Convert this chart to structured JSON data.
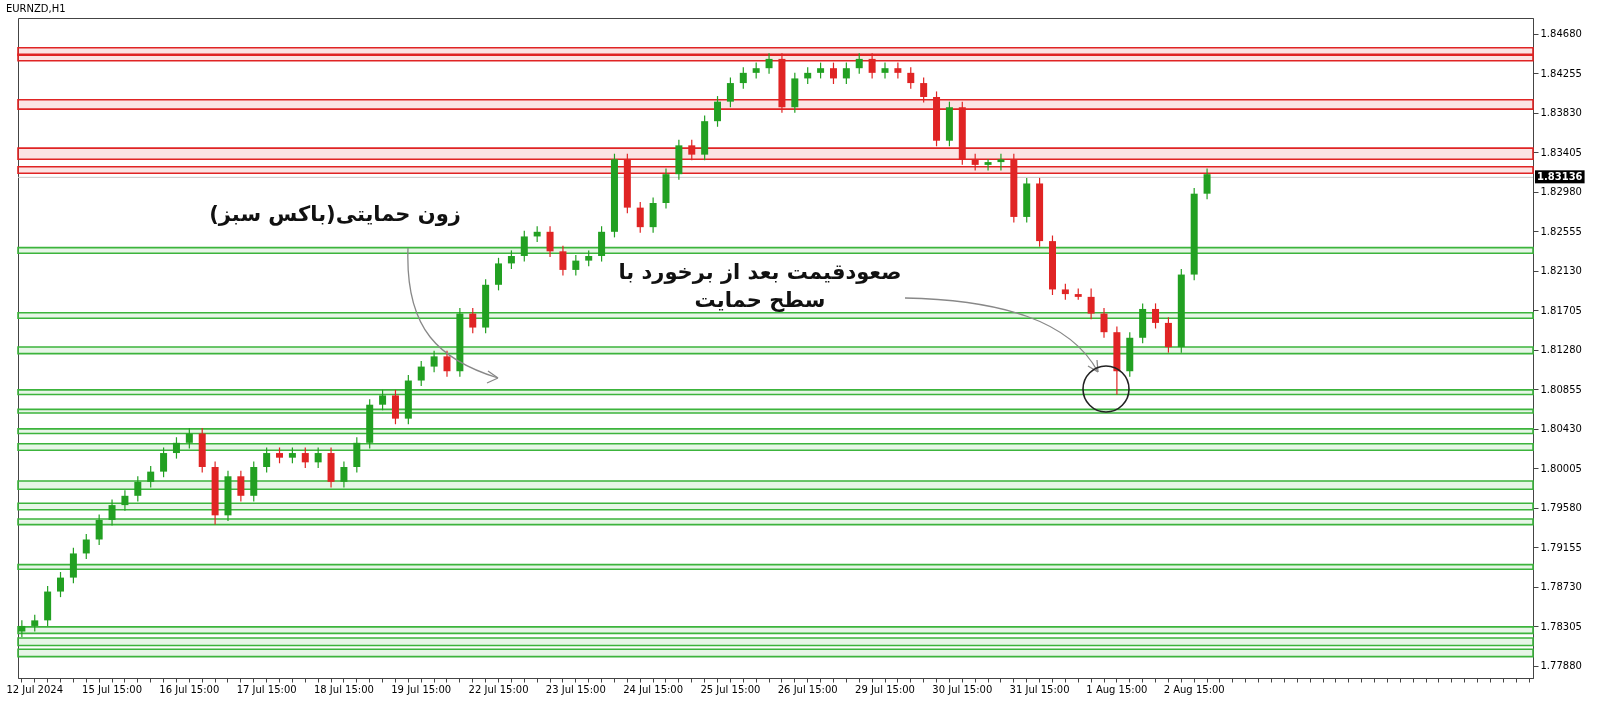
{
  "chart_data": {
    "type": "candlestick",
    "title": "EURNZD,H1",
    "categories": [
      null,
      "12 Jul 2024",
      null,
      null,
      null,
      null,
      null,
      "15 Jul 15:00",
      null,
      null,
      null,
      null,
      null,
      "16 Jul 15:00",
      null,
      null,
      null,
      null,
      null,
      "17 Jul 15:00",
      null,
      null,
      null,
      null,
      null,
      "18 Jul 15:00",
      null,
      null,
      null,
      null,
      null,
      "19 Jul 15:00",
      null,
      null,
      null,
      null,
      null,
      "22 Jul 15:00",
      null,
      null,
      null,
      null,
      null,
      "23 Jul 15:00",
      null,
      null,
      null,
      null,
      null,
      "24 Jul 15:00",
      null,
      null,
      null,
      null,
      null,
      "25 Jul 15:00",
      null,
      null,
      null,
      null,
      null,
      "26 Jul 15:00",
      null,
      null,
      null,
      null,
      null,
      "29 Jul 15:00",
      null,
      null,
      null,
      null,
      null,
      "30 Jul 15:00",
      null,
      null,
      null,
      null,
      null,
      "31 Jul 15:00",
      null,
      null,
      null,
      null,
      null,
      "1 Aug 15:00",
      null,
      null,
      null,
      null,
      null,
      "2 Aug 15:00",
      null,
      null,
      null,
      null,
      null,
      null,
      null,
      null,
      null,
      null,
      null,
      null,
      null,
      null,
      null,
      null,
      null,
      null,
      null,
      null,
      null,
      null,
      null,
      null,
      null,
      null
    ],
    "ohlc": [
      [
        1.7825,
        1.7837,
        1.7819,
        1.7831
      ],
      [
        1.7831,
        1.7843,
        1.7825,
        1.7837
      ],
      [
        1.7837,
        1.7874,
        1.7831,
        1.7868
      ],
      [
        1.7868,
        1.7889,
        1.7862,
        1.7883
      ],
      [
        1.7883,
        1.7915,
        1.7877,
        1.7909
      ],
      [
        1.7909,
        1.793,
        1.7903,
        1.7924
      ],
      [
        1.7924,
        1.7951,
        1.7918,
        1.7945
      ],
      [
        1.7945,
        1.7967,
        1.7939,
        1.7961
      ],
      [
        1.7961,
        1.7977,
        1.7955,
        1.7971
      ],
      [
        1.7971,
        1.7992,
        1.7965,
        1.7986
      ],
      [
        1.7986,
        1.8003,
        1.798,
        1.7997
      ],
      [
        1.7997,
        1.8023,
        1.7991,
        1.8017
      ],
      [
        1.8017,
        1.8034,
        1.8011,
        1.8028
      ],
      [
        1.8028,
        1.8044,
        1.8022,
        1.8038
      ],
      [
        1.8038,
        1.8044,
        1.7996,
        1.8002
      ],
      [
        1.8002,
        1.8008,
        1.794,
        1.795
      ],
      [
        1.795,
        1.7998,
        1.7944,
        1.7992
      ],
      [
        1.7992,
        1.7998,
        1.7965,
        1.7971
      ],
      [
        1.7971,
        1.8008,
        1.7965,
        1.8002
      ],
      [
        1.8002,
        1.8023,
        1.7996,
        1.8017
      ],
      [
        1.8017,
        1.8023,
        1.8006,
        1.8012
      ],
      [
        1.8012,
        1.8023,
        1.8006,
        1.8017
      ],
      [
        1.8017,
        1.8023,
        1.8001,
        1.8007
      ],
      [
        1.8007,
        1.8023,
        1.8001,
        1.8017
      ],
      [
        1.8017,
        1.8023,
        1.798,
        1.7986
      ],
      [
        1.7986,
        1.8008,
        1.798,
        1.8002
      ],
      [
        1.8002,
        1.8034,
        1.7996,
        1.8028
      ],
      [
        1.8028,
        1.8075,
        1.8022,
        1.8069
      ],
      [
        1.8069,
        1.8085,
        1.8063,
        1.8079
      ],
      [
        1.8079,
        1.8085,
        1.8048,
        1.8054
      ],
      [
        1.8054,
        1.8101,
        1.8048,
        1.8095
      ],
      [
        1.8095,
        1.8116,
        1.8089,
        1.811
      ],
      [
        1.811,
        1.8127,
        1.8104,
        1.8121
      ],
      [
        1.8121,
        1.8127,
        1.8099,
        1.8105
      ],
      [
        1.8105,
        1.8173,
        1.8099,
        1.8167
      ],
      [
        1.8167,
        1.8173,
        1.8146,
        1.8152
      ],
      [
        1.8152,
        1.8204,
        1.8146,
        1.8198
      ],
      [
        1.8198,
        1.8227,
        1.8192,
        1.8221
      ],
      [
        1.8221,
        1.8235,
        1.8215,
        1.8229
      ],
      [
        1.8229,
        1.8256,
        1.8223,
        1.825
      ],
      [
        1.825,
        1.8261,
        1.8244,
        1.8255
      ],
      [
        1.8255,
        1.8261,
        1.8228,
        1.8234
      ],
      [
        1.8234,
        1.824,
        1.8208,
        1.8214
      ],
      [
        1.8214,
        1.823,
        1.8208,
        1.8224
      ],
      [
        1.8224,
        1.8235,
        1.8218,
        1.8229
      ],
      [
        1.8229,
        1.8261,
        1.8223,
        1.8255
      ],
      [
        1.8255,
        1.8339,
        1.8249,
        1.8333
      ],
      [
        1.8333,
        1.8339,
        1.8275,
        1.8281
      ],
      [
        1.8281,
        1.8287,
        1.8254,
        1.826
      ],
      [
        1.826,
        1.8292,
        1.8254,
        1.8286
      ],
      [
        1.8286,
        1.8323,
        1.828,
        1.8317
      ],
      [
        1.8317,
        1.8354,
        1.8311,
        1.8348
      ],
      [
        1.8348,
        1.8354,
        1.8332,
        1.8338
      ],
      [
        1.8338,
        1.838,
        1.8332,
        1.8374
      ],
      [
        1.8374,
        1.8401,
        1.8368,
        1.8395
      ],
      [
        1.8395,
        1.8421,
        1.8389,
        1.8415
      ],
      [
        1.8415,
        1.8432,
        1.8409,
        1.8426
      ],
      [
        1.8426,
        1.8437,
        1.842,
        1.8431
      ],
      [
        1.8431,
        1.8447,
        1.8425,
        1.8441
      ],
      [
        1.8441,
        1.8447,
        1.8383,
        1.8389
      ],
      [
        1.8389,
        1.8426,
        1.8383,
        1.842
      ],
      [
        1.842,
        1.8432,
        1.8414,
        1.8426
      ],
      [
        1.8426,
        1.8437,
        1.842,
        1.8431
      ],
      [
        1.8431,
        1.8437,
        1.8414,
        1.842
      ],
      [
        1.842,
        1.8437,
        1.8414,
        1.8431
      ],
      [
        1.8431,
        1.8447,
        1.8425,
        1.8441
      ],
      [
        1.8441,
        1.8447,
        1.842,
        1.8426
      ],
      [
        1.8426,
        1.8437,
        1.842,
        1.8431
      ],
      [
        1.8431,
        1.8437,
        1.842,
        1.8426
      ],
      [
        1.8426,
        1.8432,
        1.8409,
        1.8415
      ],
      [
        1.8415,
        1.8421,
        1.8394,
        1.84
      ],
      [
        1.84,
        1.8406,
        1.8347,
        1.8353
      ],
      [
        1.8353,
        1.8395,
        1.8347,
        1.8389
      ],
      [
        1.8389,
        1.8395,
        1.8327,
        1.8333
      ],
      [
        1.8333,
        1.8339,
        1.8321,
        1.8327
      ],
      [
        1.8327,
        1.8333,
        1.8321,
        1.833
      ],
      [
        1.833,
        1.8339,
        1.8321,
        1.8333
      ],
      [
        1.8333,
        1.8339,
        1.8265,
        1.8271
      ],
      [
        1.8271,
        1.8313,
        1.8265,
        1.8307
      ],
      [
        1.8307,
        1.8313,
        1.8239,
        1.8245
      ],
      [
        1.8245,
        1.8251,
        1.8187,
        1.8193
      ],
      [
        1.8193,
        1.8199,
        1.8182,
        1.8188
      ],
      [
        1.8188,
        1.8194,
        1.8182,
        1.8185
      ],
      [
        1.8185,
        1.8194,
        1.8161,
        1.8167
      ],
      [
        1.8167,
        1.8173,
        1.8141,
        1.8147
      ],
      [
        1.8147,
        1.8153,
        1.808,
        1.8105
      ],
      [
        1.8105,
        1.8147,
        1.8099,
        1.8141
      ],
      [
        1.8141,
        1.8178,
        1.8135,
        1.8172
      ],
      [
        1.8172,
        1.8178,
        1.8151,
        1.8157
      ],
      [
        1.8157,
        1.8163,
        1.8125,
        1.8131
      ],
      [
        1.8131,
        1.8215,
        1.8125,
        1.8209
      ],
      [
        1.8209,
        1.8302,
        1.8203,
        1.8296
      ],
      [
        1.8296,
        1.8323,
        1.829,
        1.8317
      ],
      null,
      null,
      null,
      null,
      null,
      null,
      null,
      null,
      null,
      null,
      null,
      null,
      null,
      null,
      null,
      null,
      null,
      null,
      null,
      null,
      null,
      null,
      null,
      null,
      null
    ],
    "colors": [
      "#22a022",
      "#22a022",
      "#22a022",
      "#22a022",
      "#22a022",
      "#22a022",
      "#22a022",
      "#22a022",
      "#22a022",
      "#22a022",
      "#22a022",
      "#22a022",
      "#22a022",
      "#22a022",
      "#e02424",
      "#e02424",
      "#22a022",
      "#e02424",
      "#22a022",
      "#22a022",
      "#e02424",
      "#22a022",
      "#e02424",
      "#22a022",
      "#e02424",
      "#22a022",
      "#22a022",
      "#22a022",
      "#22a022",
      "#e02424",
      "#22a022",
      "#22a022",
      "#22a022",
      "#e02424",
      "#22a022",
      "#e02424",
      "#22a022",
      "#22a022",
      "#22a022",
      "#22a022",
      "#22a022",
      "#e02424",
      "#e02424",
      "#22a022",
      "#22a022",
      "#22a022",
      "#22a022",
      "#e02424",
      "#e02424",
      "#22a022",
      "#22a022",
      "#22a022",
      "#e02424",
      "#22a022",
      "#22a022",
      "#22a022",
      "#22a022",
      "#22a022",
      "#22a022",
      "#e02424",
      "#22a022",
      "#22a022",
      "#22a022",
      "#e02424",
      "#22a022",
      "#22a022",
      "#e02424",
      "#22a022",
      "#e02424",
      "#e02424",
      "#e02424",
      "#e02424",
      "#22a022",
      "#e02424",
      "#e02424",
      "#22a022",
      "#22a022",
      "#e02424",
      "#22a022",
      "#e02424",
      "#e02424",
      "#e02424",
      "#e02424",
      "#e02424",
      "#e02424",
      "#e02424",
      "#22a022",
      "#22a022",
      "#e02424",
      "#e02424",
      "#22a022",
      "#22a022",
      "#22a022",
      null,
      null,
      null,
      null,
      null,
      null,
      null,
      null,
      null,
      null,
      null,
      null,
      null,
      null,
      null,
      null,
      null,
      null,
      null,
      null,
      null,
      null,
      null,
      null,
      null
    ],
    "ylim": [
      1.7775,
      1.8485
    ],
    "yticks": [
      {
        "value": 1.7788,
        "label": "1.77880"
      },
      {
        "value": 1.78305,
        "label": "1.78305"
      },
      {
        "value": 1.7873,
        "label": "1.78730"
      },
      {
        "value": 1.79155,
        "label": "1.79155"
      },
      {
        "value": 1.7958,
        "label": "1.79580"
      },
      {
        "value": 1.80005,
        "label": "1.80005"
      },
      {
        "value": 1.8043,
        "label": "1.80430"
      },
      {
        "value": 1.80855,
        "label": "1.80855"
      },
      {
        "value": 1.8128,
        "label": "1.81280"
      },
      {
        "value": 1.81705,
        "label": "1.81705"
      },
      {
        "value": 1.8213,
        "label": "1.82130"
      },
      {
        "value": 1.82555,
        "label": "1.82555"
      },
      {
        "value": 1.8298,
        "label": "1.82980"
      },
      {
        "value": 1.83405,
        "label": "1.83405"
      },
      {
        "value": 1.8383,
        "label": "1.83830"
      },
      {
        "value": 1.84255,
        "label": "1.84255"
      },
      {
        "value": 1.8468,
        "label": "1.84680"
      }
    ],
    "ref_lines": [
      {
        "axis": "y",
        "value": 1.83136,
        "label": "1.83136",
        "color": "#c8c8c8"
      }
    ],
    "bands": [
      {
        "axis": "y",
        "from": 1.8445,
        "to": 1.8453,
        "color": "#e02424"
      },
      {
        "axis": "y",
        "from": 1.8439,
        "to": 1.8446,
        "color": "#e02424"
      },
      {
        "axis": "y",
        "from": 1.8387,
        "to": 1.8397,
        "color": "#e02424"
      },
      {
        "axis": "y",
        "from": 1.8333,
        "to": 1.8345,
        "color": "#e02424"
      },
      {
        "axis": "y",
        "from": 1.8318,
        "to": 1.8325,
        "color": "#e02424"
      },
      {
        "axis": "y",
        "from": 1.8232,
        "to": 1.8238,
        "color": "#3cb43c"
      },
      {
        "axis": "y",
        "from": 1.8162,
        "to": 1.8168,
        "color": "#3cb43c"
      },
      {
        "axis": "y",
        "from": 1.8124,
        "to": 1.8131,
        "color": "#3cb43c"
      },
      {
        "axis": "y",
        "from": 1.808,
        "to": 1.8085,
        "color": "#3cb43c"
      },
      {
        "axis": "y",
        "from": 1.806,
        "to": 1.8064,
        "color": "#3cb43c"
      },
      {
        "axis": "y",
        "from": 1.8038,
        "to": 1.8043,
        "color": "#3cb43c"
      },
      {
        "axis": "y",
        "from": 1.802,
        "to": 1.8027,
        "color": "#3cb43c"
      },
      {
        "axis": "y",
        "from": 1.7978,
        "to": 1.7987,
        "color": "#3cb43c"
      },
      {
        "axis": "y",
        "from": 1.7956,
        "to": 1.7963,
        "color": "#3cb43c"
      },
      {
        "axis": "y",
        "from": 1.794,
        "to": 1.7946,
        "color": "#3cb43c"
      },
      {
        "axis": "y",
        "from": 1.7892,
        "to": 1.7897,
        "color": "#3cb43c"
      },
      {
        "axis": "y",
        "from": 1.7823,
        "to": 1.783,
        "color": "#3cb43c"
      },
      {
        "axis": "y",
        "from": 1.781,
        "to": 1.7818,
        "color": "#3cb43c"
      },
      {
        "axis": "y",
        "from": 1.7798,
        "to": 1.7806,
        "color": "#3cb43c"
      }
    ],
    "annotations": [
      "زون حمایتی(باکس سبز)",
      "صعودقیمت بعد از برخورد با سطح حمایت"
    ]
  }
}
